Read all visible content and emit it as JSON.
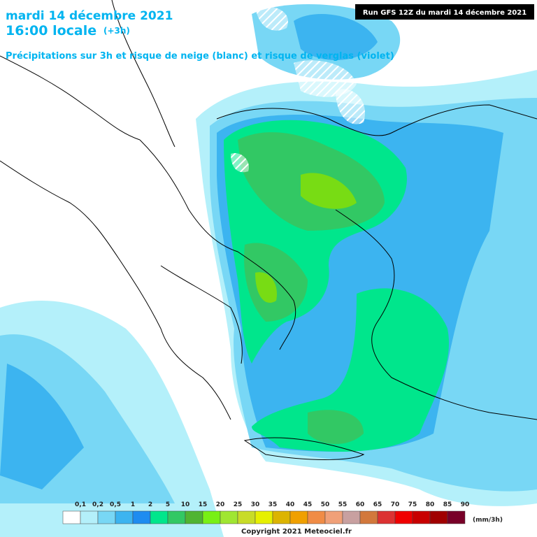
{
  "header": {
    "date": "mardi 14 décembre 2021",
    "time": "16:00 locale",
    "offset": "(+3h)",
    "subtitle": "Précipitations sur 3h et risque de neige (blanc) et risque de verglas (violet)"
  },
  "run_label": "Run GFS 12Z du mardi 14 décembre 2021",
  "legend": {
    "labels": [
      "0,1",
      "0,2",
      "0,5",
      "1",
      "2",
      "5",
      "10",
      "15",
      "20",
      "25",
      "30",
      "35",
      "40",
      "45",
      "50",
      "55",
      "60",
      "65",
      "70",
      "75",
      "80",
      "85",
      "90"
    ],
    "unit": "(mm/3h)"
  },
  "copyright": "Copyright 2021 Meteociel.fr"
}
